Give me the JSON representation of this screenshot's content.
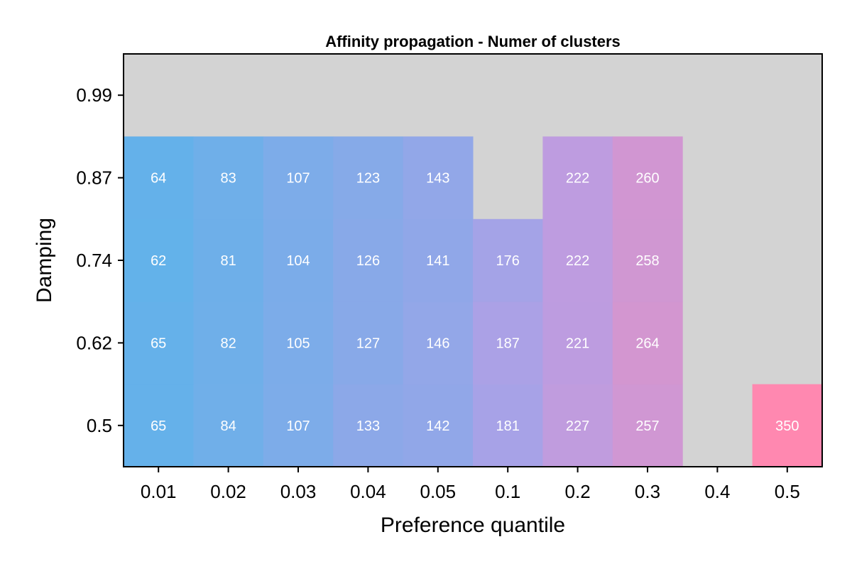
{
  "chart_data": {
    "type": "heatmap",
    "title": "Affinity propagation -  Numer of clusters",
    "xlabel": "Preference quantile",
    "ylabel": "Damping",
    "x_categories": [
      "0.01",
      "0.02",
      "0.03",
      "0.04",
      "0.05",
      "0.1",
      "0.2",
      "0.3",
      "0.4",
      "0.5"
    ],
    "y_categories": [
      "0.5",
      "0.62",
      "0.74",
      "0.87",
      "0.99"
    ],
    "values": [
      [
        65,
        84,
        107,
        133,
        142,
        181,
        227,
        257,
        null,
        350
      ],
      [
        65,
        82,
        105,
        127,
        146,
        187,
        221,
        264,
        null,
        null
      ],
      [
        62,
        81,
        104,
        126,
        141,
        176,
        222,
        258,
        null,
        null
      ],
      [
        64,
        83,
        107,
        123,
        143,
        null,
        222,
        260,
        null,
        null
      ],
      [
        null,
        null,
        null,
        null,
        null,
        null,
        null,
        null,
        null,
        null
      ]
    ],
    "color_range": [
      60,
      350
    ],
    "color_low": "#62b2ea",
    "color_mid": "#b59fe6",
    "color_high": "#ff88b0",
    "missing_color": "#d3d3d3"
  }
}
